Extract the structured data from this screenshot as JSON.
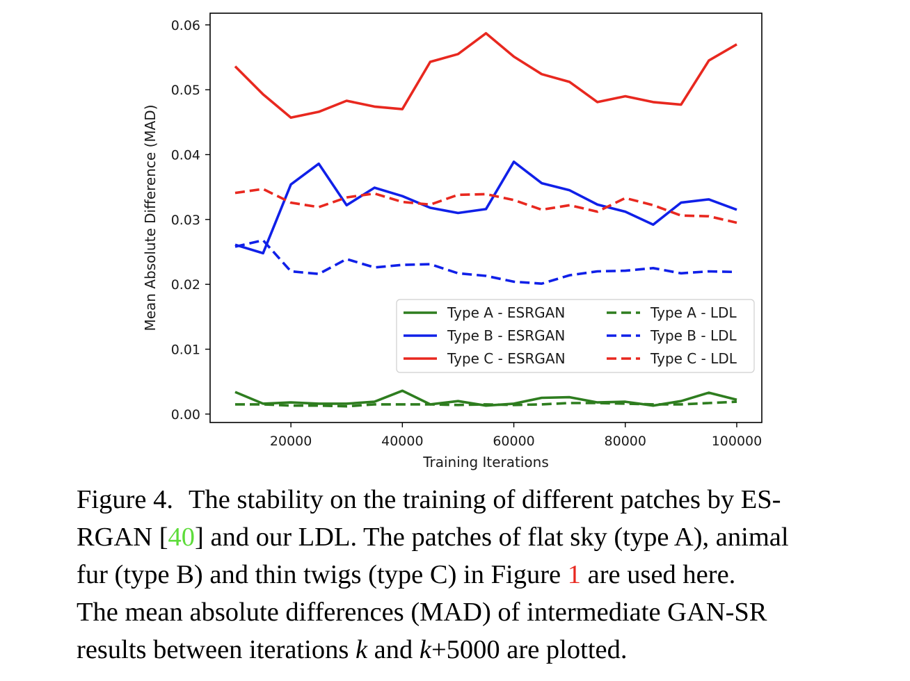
{
  "chart_data": {
    "type": "line",
    "xlabel": "Training Iterations",
    "ylabel": "Mean Absolute Difference (MAD)",
    "xlim": [
      5500,
      104500
    ],
    "ylim": [
      -0.0013,
      0.0618
    ],
    "xticks": [
      20000,
      40000,
      60000,
      80000,
      100000
    ],
    "xtick_labels": [
      "20000",
      "40000",
      "60000",
      "80000",
      "100000"
    ],
    "yticks": [
      0.0,
      0.01,
      0.02,
      0.03,
      0.04,
      0.05,
      0.06
    ],
    "ytick_labels": [
      "0.00",
      "0.01",
      "0.02",
      "0.03",
      "0.04",
      "0.05",
      "0.06"
    ],
    "grid": false,
    "legend_position": "center-right",
    "x": [
      10000,
      15000,
      20000,
      25000,
      30000,
      35000,
      40000,
      45000,
      50000,
      55000,
      60000,
      65000,
      70000,
      75000,
      80000,
      85000,
      90000,
      95000,
      100000
    ],
    "series": [
      {
        "name": "Type A - ESRGAN",
        "color": "#2e7d1f",
        "dash": "solid",
        "values": [
          0.0034,
          0.0016,
          0.0018,
          0.0016,
          0.0016,
          0.0019,
          0.0036,
          0.0015,
          0.002,
          0.0013,
          0.0016,
          0.0025,
          0.0026,
          0.0018,
          0.0019,
          0.0013,
          0.002,
          0.0033,
          0.0022
        ]
      },
      {
        "name": "Type B - ESRGAN",
        "color": "#1020e8",
        "dash": "solid",
        "values": [
          0.0261,
          0.0248,
          0.0354,
          0.0386,
          0.0322,
          0.0349,
          0.0336,
          0.0318,
          0.031,
          0.0316,
          0.0389,
          0.0356,
          0.0345,
          0.0323,
          0.0312,
          0.0292,
          0.0326,
          0.0331,
          0.0315
        ]
      },
      {
        "name": "Type C - ESRGAN",
        "color": "#e8281f",
        "dash": "solid",
        "values": [
          0.0536,
          0.0493,
          0.0457,
          0.0466,
          0.0483,
          0.0474,
          0.047,
          0.0543,
          0.0555,
          0.0587,
          0.0551,
          0.0524,
          0.0512,
          0.0481,
          0.049,
          0.0481,
          0.0477,
          0.0545,
          0.057
        ]
      },
      {
        "name": "Type A - LDL",
        "color": "#2e7d1f",
        "dash": "dashed",
        "values": [
          0.0015,
          0.0015,
          0.0013,
          0.0013,
          0.0012,
          0.0015,
          0.0015,
          0.0015,
          0.0014,
          0.0015,
          0.0014,
          0.0015,
          0.0017,
          0.0017,
          0.0016,
          0.0015,
          0.0015,
          0.0017,
          0.0019
        ]
      },
      {
        "name": "Type B - LDL",
        "color": "#1020e8",
        "dash": "dashed",
        "values": [
          0.0258,
          0.0268,
          0.022,
          0.0216,
          0.0239,
          0.0226,
          0.023,
          0.0231,
          0.0217,
          0.0213,
          0.0204,
          0.0201,
          0.0214,
          0.022,
          0.0221,
          0.0225,
          0.0217,
          0.022,
          0.0219
        ]
      },
      {
        "name": "Type C - LDL",
        "color": "#e8281f",
        "dash": "dashed",
        "values": [
          0.0341,
          0.0347,
          0.0326,
          0.0319,
          0.0334,
          0.034,
          0.0327,
          0.0323,
          0.0338,
          0.0339,
          0.033,
          0.0315,
          0.0322,
          0.0312,
          0.0333,
          0.0322,
          0.0306,
          0.0305,
          0.0295
        ]
      }
    ]
  },
  "caption": {
    "line1_a": "Figure 4.",
    "line1_b": "The stability on the training of different patches by ES-",
    "line2_a": "RGAN [",
    "line2_ref": "40",
    "line2_b": "] and our LDL. The patches of flat sky (type A), animal",
    "line3_a": "fur (type B) and thin twigs (type C) in Figure ",
    "line3_ref": "1",
    "line3_b": " are used here.",
    "line4": "The mean absolute differences (MAD) of intermediate GAN-SR",
    "line5_a": "results between iterations ",
    "line5_k1": "k",
    "line5_b": " and ",
    "line5_k2": "k",
    "line5_c": "+5000 are plotted."
  }
}
